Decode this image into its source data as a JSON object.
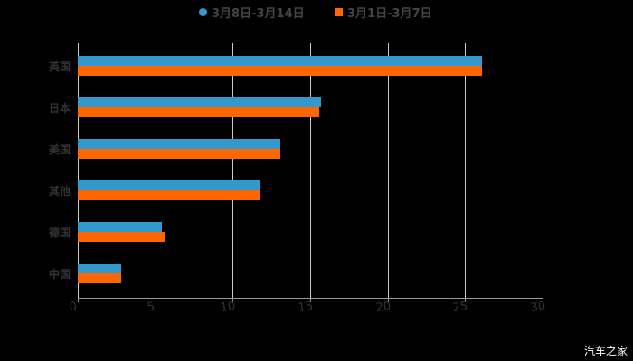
{
  "chart_data": {
    "type": "bar",
    "orientation": "horizontal",
    "categories": [
      "英国",
      "日本",
      "美国",
      "其他",
      "德国",
      "中国"
    ],
    "series": [
      {
        "name": "3月8日-3月14日",
        "color": "#3399CC",
        "values": [
          26.1,
          15.7,
          13.1,
          11.8,
          5.4,
          2.8
        ]
      },
      {
        "name": "3月1日-3月7日",
        "color": "#FF6600",
        "values": [
          26.1,
          15.6,
          13.1,
          11.8,
          5.6,
          2.8
        ]
      }
    ],
    "xlim": [
      0,
      30
    ],
    "xticks": [
      "0",
      "5",
      "10",
      "15",
      "20",
      "25",
      "30"
    ],
    "legend_position": "top",
    "grid": true,
    "title": "",
    "xlabel": "",
    "ylabel": ""
  },
  "legend": {
    "series_a": "3月8日-3月14日",
    "series_b": "3月1日-3月7日"
  },
  "watermark": "汽车之家"
}
